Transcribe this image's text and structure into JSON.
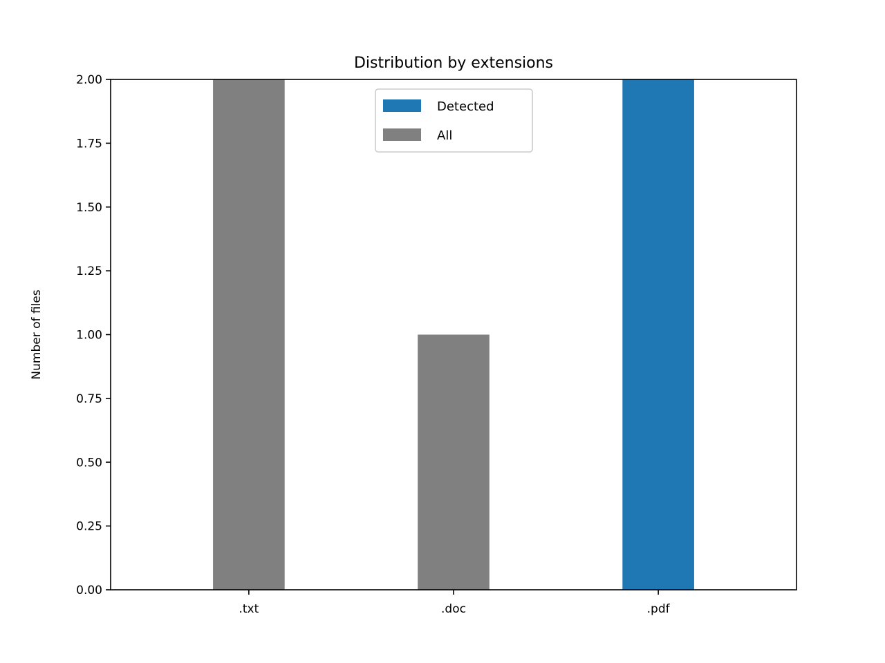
{
  "chart_data": {
    "type": "bar",
    "title": "Distribution by extensions",
    "xlabel": "",
    "ylabel": "Number of files",
    "categories": [
      ".txt",
      ".doc",
      ".pdf"
    ],
    "ylim": [
      0,
      2
    ],
    "yticks": [
      "0.00",
      "0.25",
      "0.50",
      "0.75",
      "1.00",
      "1.25",
      "1.50",
      "1.75",
      "2.00"
    ],
    "bars": [
      {
        "category": ".txt",
        "series": "All",
        "value": 2
      },
      {
        "category": ".doc",
        "series": "All",
        "value": 1
      },
      {
        "category": ".pdf",
        "series": "Detected",
        "value": 2
      }
    ],
    "series": [
      {
        "name": "Detected",
        "color": "#1f77b4"
      },
      {
        "name": "All",
        "color": "#808080"
      }
    ],
    "legend_position": "upper center",
    "grid": false
  }
}
